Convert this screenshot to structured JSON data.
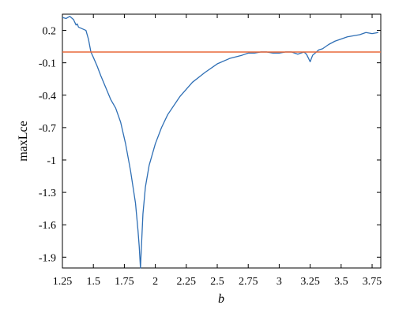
{
  "chart_data": {
    "type": "line",
    "title": "",
    "xlabel": "b",
    "ylabel": "maxLce",
    "xlim": [
      1.25,
      3.82
    ],
    "ylim": [
      -2.0,
      0.35
    ],
    "xticks": [
      1.25,
      1.5,
      1.75,
      2,
      2.25,
      2.5,
      2.75,
      3,
      3.25,
      3.5,
      3.75
    ],
    "xtick_labels": [
      "1.25",
      "1.5",
      "1.75",
      "2",
      "2.25",
      "2.5",
      "2.75",
      "3",
      "3.25",
      "3.5",
      "3.75"
    ],
    "yticks": [
      0.2,
      -0.1,
      -0.4,
      -0.7,
      -1,
      -1.3,
      -1.6,
      -1.9
    ],
    "ytick_labels": [
      "0.2",
      "-0.1",
      "-0.4",
      "-0.7",
      "-1",
      "-1.3",
      "-1.6",
      "-1.9"
    ],
    "grid": false,
    "legend": "none",
    "series": [
      {
        "color": "#2f6fb5",
        "x": [
          1.25,
          1.28,
          1.31,
          1.34,
          1.36,
          1.37,
          1.38,
          1.4,
          1.42,
          1.44,
          1.46,
          1.48,
          1.5,
          1.53,
          1.56,
          1.6,
          1.64,
          1.68,
          1.72,
          1.76,
          1.8,
          1.84,
          1.86,
          1.87,
          1.88,
          1.89,
          1.9,
          1.92,
          1.95,
          2.0,
          2.05,
          2.1,
          2.2,
          2.3,
          2.4,
          2.5,
          2.6,
          2.7,
          2.75,
          2.8,
          2.85,
          2.9,
          2.95,
          3.0,
          3.05,
          3.1,
          3.15,
          3.2,
          3.22,
          3.25,
          3.27,
          3.3,
          3.32,
          3.35,
          3.4,
          3.45,
          3.5,
          3.55,
          3.6,
          3.65,
          3.7,
          3.75,
          3.8
        ],
        "y": [
          0.32,
          0.31,
          0.33,
          0.3,
          0.25,
          0.26,
          0.23,
          0.22,
          0.21,
          0.2,
          0.12,
          0.0,
          -0.05,
          -0.13,
          -0.22,
          -0.33,
          -0.44,
          -0.52,
          -0.65,
          -0.85,
          -1.1,
          -1.4,
          -1.65,
          -1.8,
          -2.0,
          -1.75,
          -1.5,
          -1.25,
          -1.05,
          -0.85,
          -0.7,
          -0.58,
          -0.41,
          -0.28,
          -0.19,
          -0.11,
          -0.06,
          -0.03,
          -0.01,
          -0.01,
          0.0,
          0.0,
          -0.01,
          -0.01,
          0.0,
          0.0,
          -0.02,
          0.0,
          -0.02,
          -0.09,
          -0.03,
          0.0,
          0.02,
          0.03,
          0.07,
          0.1,
          0.12,
          0.14,
          0.15,
          0.16,
          0.18,
          0.17,
          0.18
        ]
      },
      {
        "color": "#e8683a",
        "x": [
          1.25,
          3.82
        ],
        "y": [
          0.0,
          0.0
        ]
      }
    ]
  }
}
